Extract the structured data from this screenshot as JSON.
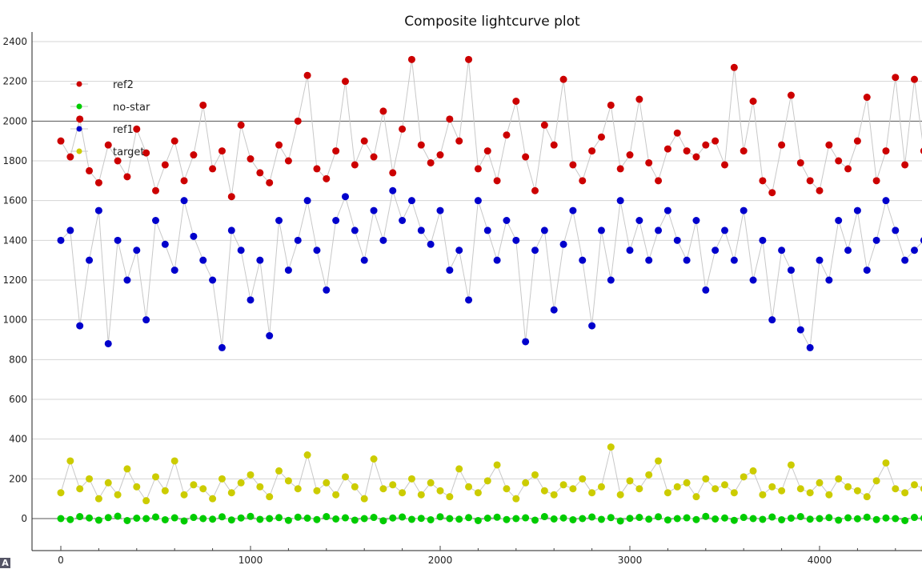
{
  "chart_data": {
    "type": "scatter",
    "title": "Composite lightcurve plot",
    "xlabel": "",
    "ylabel": "",
    "xlim": [
      -150,
      4590
    ],
    "ylim": [
      -160,
      2400
    ],
    "x_ticks": [
      0,
      1000,
      2000,
      3000,
      4000
    ],
    "y_ticks": [
      0,
      200,
      400,
      600,
      800,
      1000,
      1200,
      1400,
      1600,
      1800,
      2000,
      2200,
      2400
    ],
    "grid": true,
    "legend_placement": "top-left",
    "x_step": 50,
    "series": [
      {
        "name": "ref2",
        "color": "#cc0000",
        "values": [
          1900,
          1820,
          2010,
          1750,
          1690,
          1880,
          1800,
          1720,
          1960,
          1840,
          1650,
          1780,
          1900,
          1700,
          1830,
          2080,
          1760,
          1850,
          1620,
          1980,
          1810,
          1740,
          1690,
          1880,
          1800,
          2000,
          2230,
          1760,
          1710,
          1850,
          2200,
          1780,
          1900,
          1820,
          2050,
          1740,
          1960,
          2310,
          1880,
          1790,
          1830,
          2010,
          1900,
          2310,
          1760,
          1850,
          1700,
          1930,
          2100,
          1820,
          1650,
          1980,
          1880,
          2210,
          1780,
          1700,
          1850,
          1920,
          2080,
          1760,
          1830,
          2110,
          1790,
          1700,
          1860,
          1940,
          1850,
          1820,
          1880,
          1900,
          1780,
          2270,
          1850,
          2100,
          1700,
          1640,
          1880,
          2130,
          1790,
          1700,
          1650,
          1880,
          1800,
          1760,
          1900,
          2120,
          1700,
          1850,
          2220,
          1780,
          2210,
          1850
        ]
      },
      {
        "name": "no-star",
        "color": "#00cc00",
        "values": [
          0,
          -5,
          10,
          3,
          -8,
          5,
          12,
          -10,
          2,
          0,
          8,
          -6,
          4,
          -12,
          6,
          0,
          -3,
          9,
          -7,
          3,
          11,
          -4,
          0,
          5,
          -9,
          7,
          2,
          -5,
          10,
          -2,
          4,
          -8,
          0,
          6,
          -11,
          3,
          8,
          -4,
          1,
          -6,
          9,
          0,
          -3,
          5,
          -10,
          2,
          7,
          -5,
          0,
          4,
          -8,
          10,
          -2,
          3,
          -6,
          0,
          8,
          -4,
          5,
          -12,
          1,
          6,
          -3,
          9,
          -7,
          0,
          4,
          -5,
          11,
          -2,
          3,
          -9,
          6,
          0,
          -4,
          8,
          -6,
          2,
          10,
          -3,
          0,
          5,
          -8,
          4,
          -1,
          7,
          -5,
          3,
          0,
          -10,
          6,
          2
        ]
      },
      {
        "name": "ref1",
        "color": "#0000cc",
        "values": [
          1400,
          1450,
          970,
          1300,
          1550,
          880,
          1400,
          1200,
          1350,
          1000,
          1500,
          1380,
          1250,
          1600,
          1420,
          1300,
          1200,
          860,
          1450,
          1350,
          1100,
          1300,
          920,
          1500,
          1250,
          1400,
          1600,
          1350,
          1150,
          1500,
          1620,
          1450,
          1300,
          1550,
          1400,
          1650,
          1500,
          1600,
          1450,
          1380,
          1550,
          1250,
          1350,
          1100,
          1600,
          1450,
          1300,
          1500,
          1400,
          890,
          1350,
          1450,
          1050,
          1380,
          1550,
          1300,
          970,
          1450,
          1200,
          1600,
          1350,
          1500,
          1300,
          1450,
          1550,
          1400,
          1300,
          1500,
          1150,
          1350,
          1450,
          1300,
          1550,
          1200,
          1400,
          1000,
          1350,
          1250,
          950,
          860,
          1300,
          1200,
          1500,
          1350,
          1550,
          1250,
          1400,
          1600,
          1450,
          1300,
          1350,
          1400
        ]
      },
      {
        "name": "target",
        "color": "#cccc00",
        "values": [
          130,
          290,
          150,
          200,
          100,
          180,
          120,
          250,
          160,
          90,
          210,
          140,
          290,
          120,
          170,
          150,
          100,
          200,
          130,
          180,
          220,
          160,
          110,
          240,
          190,
          150,
          320,
          140,
          180,
          120,
          210,
          160,
          100,
          300,
          150,
          170,
          130,
          200,
          120,
          180,
          140,
          110,
          250,
          160,
          130,
          190,
          270,
          150,
          100,
          180,
          220,
          140,
          120,
          170,
          150,
          200,
          130,
          160,
          360,
          120,
          190,
          150,
          220,
          290,
          130,
          160,
          180,
          110,
          200,
          150,
          170,
          130,
          210,
          240,
          120,
          160,
          140,
          270,
          150,
          130,
          180,
          120,
          200,
          160,
          140,
          110,
          190,
          280,
          150,
          130,
          170,
          150
        ]
      }
    ]
  },
  "corner_badge": "A"
}
